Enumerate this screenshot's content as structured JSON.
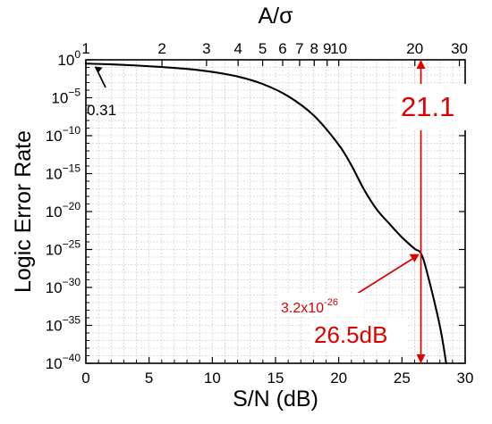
{
  "chart_data": {
    "type": "line",
    "title": "",
    "xlabel": "S/N (dB)",
    "ylabel": "Logic Error Rate",
    "top_xlabel": "A/σ",
    "xlim": [
      0,
      30
    ],
    "ylog_range": [
      -40,
      0
    ],
    "top_xlim_log": [
      1,
      31.62
    ],
    "grid": true,
    "bottom_ticks": [
      "0",
      "5",
      "10",
      "15",
      "20",
      "25",
      "30"
    ],
    "bottom_tick_values": [
      0,
      5,
      10,
      15,
      20,
      25,
      30
    ],
    "left_ticks": [
      {
        "base": "10",
        "exp": "0",
        "value": 0
      },
      {
        "base": "10",
        "exp": "−5",
        "value": -5
      },
      {
        "base": "10",
        "exp": "−10",
        "value": -10
      },
      {
        "base": "10",
        "exp": "−15",
        "value": -15
      },
      {
        "base": "10",
        "exp": "−20",
        "value": -20
      },
      {
        "base": "10",
        "exp": "−25",
        "value": -25
      },
      {
        "base": "10",
        "exp": "−30",
        "value": -30
      },
      {
        "base": "10",
        "exp": "−35",
        "value": -35
      },
      {
        "base": "10",
        "exp": "−40",
        "value": -40
      }
    ],
    "top_ticks": [
      {
        "label": "1",
        "value": 1
      },
      {
        "label": "2",
        "value": 2
      },
      {
        "label": "3",
        "value": 3
      },
      {
        "label": "4",
        "value": 4
      },
      {
        "label": "5",
        "value": 5
      },
      {
        "label": "6",
        "value": 6
      },
      {
        "label": "7",
        "value": 7
      },
      {
        "label": "8",
        "value": 8
      },
      {
        "label": "9",
        "value": 9
      },
      {
        "label": "10",
        "value": 10
      },
      {
        "label": "20",
        "value": 20
      },
      {
        "label": "30",
        "value": 30
      }
    ],
    "series": [
      {
        "x": [
          0,
          2,
          4,
          6,
          8,
          10,
          12,
          14,
          16,
          18,
          20,
          21,
          22,
          23,
          24,
          25,
          26,
          26.5,
          27,
          28,
          28.5
        ],
        "y_log10": [
          -0.5,
          -0.6,
          -0.75,
          -0.95,
          -1.2,
          -1.6,
          -2.2,
          -3.2,
          -4.8,
          -7.3,
          -11.2,
          -13.9,
          -17.1,
          -19.7,
          -21.6,
          -23.4,
          -24.9,
          -25.5,
          -28.1,
          -35.1,
          -40
        ]
      }
    ],
    "annotations": {
      "left_value": "0.31",
      "marker_value_prefix": "3.2x10",
      "marker_value_exp": "-26",
      "marker_x": 26.5,
      "marker_y_log10": -25.5,
      "sn_label": "26.5dB",
      "asigma_label": "21.1",
      "annotation_color": "#e00000"
    }
  }
}
